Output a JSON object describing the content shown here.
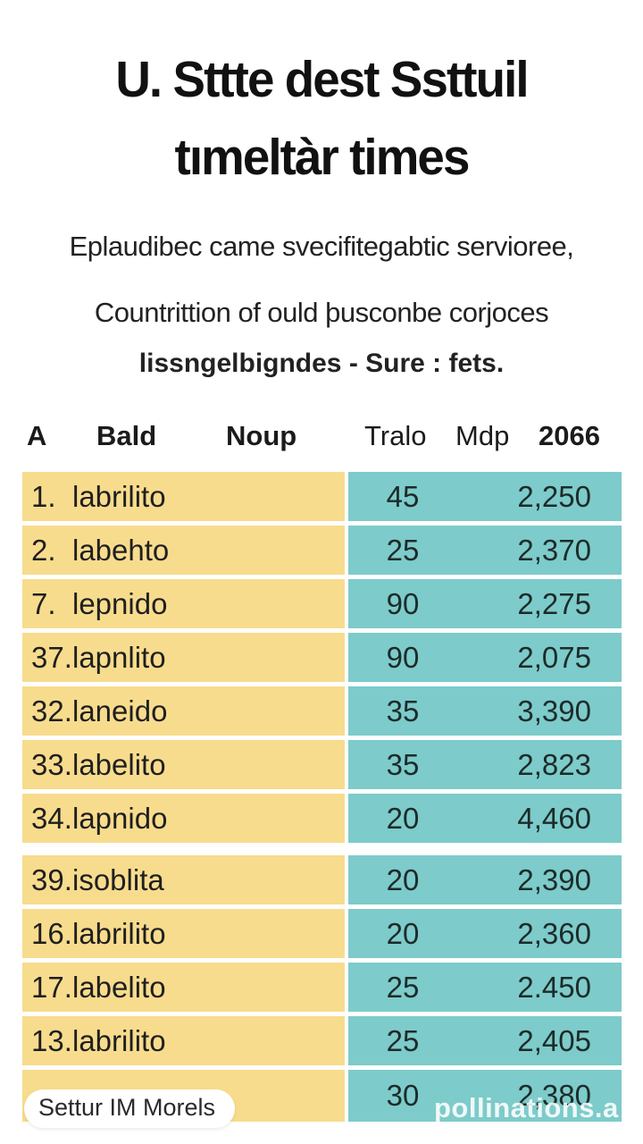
{
  "title": {
    "line1": "U. Sttte dest Ssttuil",
    "line2": "tımeltàr times"
  },
  "subtitle": {
    "line1": "Eplaudibec came svecifitegabtic servioree,",
    "line2": "Countrittion of ould þusconbe corjoces",
    "line3": "lissngelbigndes - Sure :  fets."
  },
  "table": {
    "headers": [
      {
        "label": "A",
        "bold": true
      },
      {
        "label": "Bald",
        "bold": true
      },
      {
        "label": "Noup",
        "bold": true
      },
      {
        "label": "Tralo",
        "bold": false
      },
      {
        "label": "Mdp",
        "bold": false
      },
      {
        "label": "2066",
        "bold": true
      }
    ],
    "rows": [
      {
        "index": "1.",
        "name": "labrilito",
        "value": "45",
        "amount": "2,250"
      },
      {
        "index": "2.",
        "name": "labehto",
        "value": "25",
        "amount": "2,370"
      },
      {
        "index": "7.",
        "name": "lepnido",
        "value": "90",
        "amount": "2,275"
      },
      {
        "index": "37.",
        "name": "lapnlito",
        "value": "90",
        "amount": "2,075"
      },
      {
        "index": "32.",
        "name": "laneido",
        "value": "35",
        "amount": "3,390"
      },
      {
        "index": "33.",
        "name": "labelito",
        "value": "35",
        "amount": "2,823"
      },
      {
        "index": "34.",
        "name": "lapnido",
        "value": "20",
        "amount": "4,460"
      },
      {
        "index": "39.",
        "name": "isoblita",
        "value": "20",
        "amount": "2,390"
      },
      {
        "index": "16.",
        "name": "labrilito",
        "value": "20",
        "amount": "2,360"
      },
      {
        "index": "17.",
        "name": "labelito",
        "value": "25",
        "amount": "2.450"
      },
      {
        "index": "13.",
        "name": "labrilito",
        "value": "25",
        "amount": "2,405"
      },
      {
        "index": "",
        "name": "",
        "value": "30",
        "amount": "2,380",
        "pill": true
      }
    ],
    "footer_button": "Settur IM Morels"
  },
  "watermark": "pollinations.a",
  "colors": {
    "name_cell": "#f8dc8d",
    "number_cell": "#7dcbca",
    "text": "#1b1b1b",
    "background": "#ffffff"
  }
}
